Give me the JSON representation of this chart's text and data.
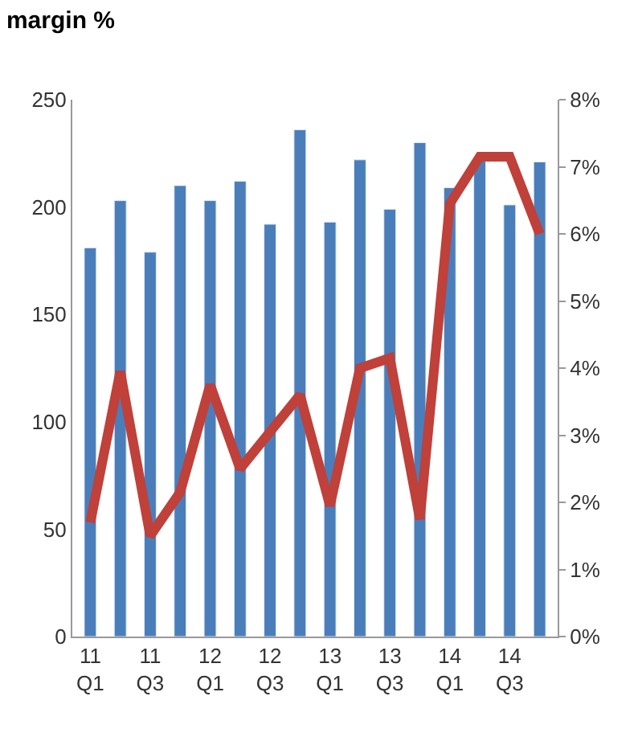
{
  "chart_data": {
    "type": "bar",
    "title": "margin %",
    "categories": [
      "11\nQ1",
      null,
      "11\nQ3",
      null,
      "12\nQ1",
      null,
      "12\nQ3",
      null,
      "13\nQ1",
      null,
      "13\nQ3",
      null,
      "14\nQ1",
      null,
      "14\nQ3",
      null
    ],
    "series": [
      {
        "color": "#4a7ebb",
        "values": [
          181,
          203,
          179,
          210,
          203,
          212,
          192,
          236,
          193,
          222,
          199,
          230,
          209,
          223,
          201,
          221
        ]
      },
      {
        "type": "line",
        "axis": "y2",
        "color": "#c0403a",
        "values": [
          1.7,
          3.95,
          1.5,
          2.15,
          3.75,
          2.5,
          3.05,
          3.6,
          1.95,
          4.0,
          4.15,
          1.75,
          6.45,
          7.15,
          7.15,
          6.0
        ]
      }
    ],
    "ylim": [
      0,
      250
    ],
    "yticks": [
      0,
      50,
      100,
      150,
      200,
      250
    ],
    "y2lim": [
      0,
      8
    ],
    "y2ticks": [
      {
        "value": 0,
        "label": "0%"
      },
      {
        "value": 1,
        "label": "1%"
      },
      {
        "value": 2,
        "label": "2%"
      },
      {
        "value": 3,
        "label": "3%"
      },
      {
        "value": 4,
        "label": "4%"
      },
      {
        "value": 5,
        "label": "5%"
      },
      {
        "value": 6,
        "label": "6%"
      },
      {
        "value": 7,
        "label": "7%"
      },
      {
        "value": 8,
        "label": "8%"
      }
    ],
    "legend": false
  }
}
